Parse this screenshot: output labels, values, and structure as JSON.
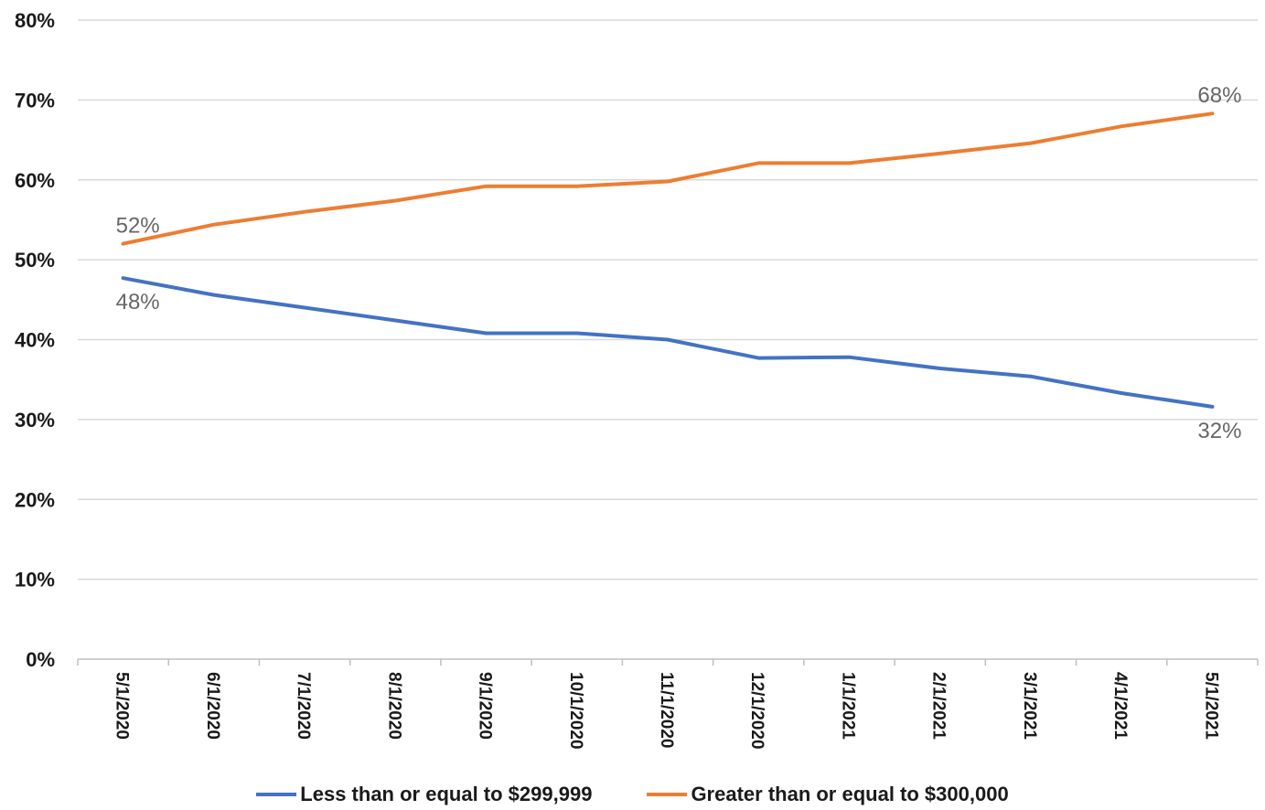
{
  "chart_data": {
    "type": "line",
    "x": [
      "5/1/2020",
      "6/1/2020",
      "7/1/2020",
      "8/1/2020",
      "9/1/2020",
      "10/1/2020",
      "11/1/2020",
      "12/1/2020",
      "1/1/2021",
      "2/1/2021",
      "3/1/2021",
      "4/1/2021",
      "5/1/2021"
    ],
    "series": [
      {
        "name": "Less than or equal to $299,999",
        "color": "#4472C4",
        "values": [
          47.7,
          45.6,
          44.0,
          42.4,
          40.8,
          40.8,
          40.0,
          37.7,
          37.8,
          36.4,
          35.4,
          33.3,
          31.6
        ]
      },
      {
        "name": "Greater than or equal to $300,000",
        "color": "#ED7D31",
        "values": [
          52.0,
          54.4,
          56.0,
          57.4,
          59.2,
          59.2,
          59.8,
          62.1,
          62.1,
          63.3,
          64.6,
          66.7,
          68.3
        ]
      }
    ],
    "data_labels": [
      {
        "series": 1,
        "index": 0,
        "text": "52%"
      },
      {
        "series": 0,
        "index": 0,
        "text": "48%"
      },
      {
        "series": 1,
        "index": 12,
        "text": "68%"
      },
      {
        "series": 0,
        "index": 12,
        "text": "32%"
      }
    ],
    "yticks": [
      "0%",
      "10%",
      "20%",
      "30%",
      "40%",
      "50%",
      "60%",
      "70%",
      "80%"
    ],
    "ylim": [
      0,
      80
    ],
    "title": "",
    "xlabel": "",
    "ylabel": "",
    "grid": true,
    "legend_position": "bottom"
  }
}
